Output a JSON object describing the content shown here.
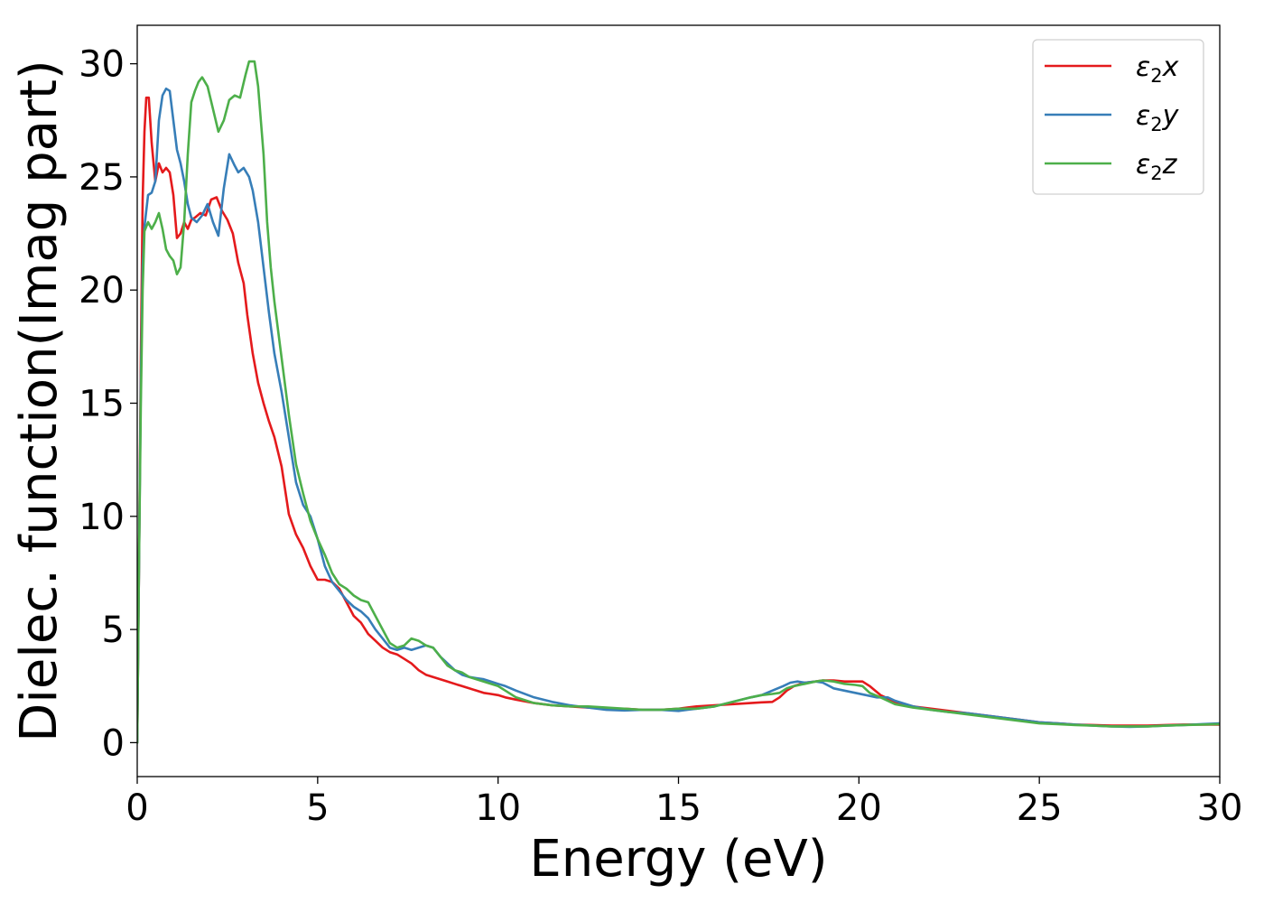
{
  "chart_data": {
    "type": "line",
    "xlabel": "Energy (eV)",
    "ylabel": "Dielec. function(Imag part)",
    "xlim": [
      0,
      30
    ],
    "ylim": [
      -1.5,
      31.7
    ],
    "xticks": [
      0,
      5,
      10,
      15,
      20,
      25,
      30
    ],
    "yticks": [
      0,
      5,
      10,
      15,
      20,
      25,
      30
    ],
    "grid": false,
    "legend_position": "top-right",
    "series": [
      {
        "name": "ε₂x",
        "legend_main": "ε",
        "legend_sub": "2",
        "legend_var": "x",
        "color": "#e41a1c",
        "x": [
          0,
          0.05,
          0.1,
          0.15,
          0.2,
          0.25,
          0.32,
          0.4,
          0.5,
          0.6,
          0.7,
          0.8,
          0.9,
          1.0,
          1.1,
          1.2,
          1.3,
          1.4,
          1.5,
          1.6,
          1.75,
          1.9,
          2.05,
          2.2,
          2.35,
          2.5,
          2.65,
          2.8,
          2.95,
          3.05,
          3.2,
          3.35,
          3.5,
          3.65,
          3.8,
          4.0,
          4.2,
          4.4,
          4.6,
          4.8,
          5.0,
          5.2,
          5.4,
          5.6,
          5.8,
          6.0,
          6.2,
          6.4,
          6.6,
          6.8,
          7.0,
          7.2,
          7.4,
          7.6,
          7.8,
          8.0,
          8.2,
          8.4,
          8.6,
          8.8,
          9.0,
          9.2,
          9.4,
          9.6,
          9.8,
          10.0,
          10.2,
          10.5,
          11.0,
          11.5,
          12.0,
          12.5,
          13.0,
          13.5,
          14.0,
          14.5,
          15.0,
          15.5,
          16.0,
          16.5,
          17.0,
          17.3,
          17.6,
          17.8,
          18.0,
          18.2,
          18.5,
          18.8,
          19.0,
          19.3,
          19.6,
          19.9,
          20.1,
          20.3,
          20.6,
          21.0,
          21.5,
          22.0,
          22.5,
          23.0,
          23.5,
          24.0,
          24.5,
          25.0,
          25.5,
          26.0,
          26.5,
          27.0,
          27.5,
          28.0,
          28.5,
          29.0,
          29.5,
          30.0
        ],
        "y": [
          0,
          8,
          17,
          24,
          27,
          28.5,
          28.5,
          26.5,
          24.8,
          25.6,
          25.2,
          25.4,
          25.2,
          24.2,
          22.3,
          22.5,
          23.0,
          22.7,
          23.1,
          23.2,
          23.4,
          23.3,
          24.0,
          24.1,
          23.5,
          23.1,
          22.5,
          21.2,
          20.3,
          18.9,
          17.2,
          15.9,
          15.0,
          14.2,
          13.5,
          12.2,
          10.1,
          9.2,
          8.6,
          7.8,
          7.2,
          7.2,
          7.1,
          6.8,
          6.2,
          5.6,
          5.3,
          4.8,
          4.5,
          4.2,
          4.0,
          3.9,
          3.7,
          3.5,
          3.2,
          3.0,
          2.9,
          2.8,
          2.7,
          2.6,
          2.5,
          2.4,
          2.3,
          2.2,
          2.15,
          2.1,
          2.0,
          1.9,
          1.75,
          1.65,
          1.6,
          1.55,
          1.5,
          1.5,
          1.45,
          1.45,
          1.5,
          1.6,
          1.65,
          1.7,
          1.75,
          1.78,
          1.8,
          2.0,
          2.3,
          2.5,
          2.65,
          2.7,
          2.75,
          2.75,
          2.7,
          2.7,
          2.7,
          2.5,
          2.1,
          1.8,
          1.6,
          1.5,
          1.4,
          1.3,
          1.2,
          1.1,
          1.0,
          0.9,
          0.85,
          0.8,
          0.78,
          0.75,
          0.75,
          0.75,
          0.78,
          0.8,
          0.8,
          0.8
        ]
      },
      {
        "name": "ε₂y",
        "legend_main": "ε",
        "legend_sub": "2",
        "legend_var": "y",
        "color": "#377eb8",
        "x": [
          0,
          0.05,
          0.1,
          0.15,
          0.2,
          0.3,
          0.4,
          0.5,
          0.6,
          0.7,
          0.8,
          0.9,
          1.0,
          1.1,
          1.2,
          1.3,
          1.4,
          1.5,
          1.65,
          1.8,
          1.95,
          2.1,
          2.25,
          2.4,
          2.55,
          2.7,
          2.8,
          2.95,
          3.1,
          3.2,
          3.35,
          3.5,
          3.65,
          3.8,
          4.0,
          4.2,
          4.4,
          4.6,
          4.8,
          5.0,
          5.2,
          5.4,
          5.6,
          5.8,
          6.0,
          6.2,
          6.4,
          6.6,
          6.8,
          7.0,
          7.2,
          7.4,
          7.6,
          7.8,
          8.0,
          8.2,
          8.4,
          8.6,
          8.8,
          9.0,
          9.2,
          9.4,
          9.6,
          9.8,
          10.0,
          10.2,
          10.5,
          11.0,
          11.5,
          12.0,
          12.5,
          13.0,
          13.5,
          14.0,
          14.5,
          15.0,
          15.5,
          16.0,
          16.5,
          17.0,
          17.3,
          17.6,
          17.9,
          18.1,
          18.3,
          18.5,
          18.8,
          19.0,
          19.3,
          19.6,
          19.9,
          20.2,
          20.5,
          20.8,
          21.0,
          21.5,
          22.0,
          22.5,
          23.0,
          23.5,
          24.0,
          24.5,
          25.0,
          25.5,
          26.0,
          26.5,
          27.0,
          27.5,
          28.0,
          28.5,
          29.0,
          29.5,
          30.0
        ],
        "y": [
          0,
          8,
          16,
          21,
          22.8,
          24.2,
          24.3,
          24.8,
          27.5,
          28.6,
          28.9,
          28.8,
          27.5,
          26.2,
          25.6,
          24.8,
          23.8,
          23.2,
          23.0,
          23.3,
          23.8,
          23.0,
          22.4,
          24.5,
          26.0,
          25.5,
          25.2,
          25.4,
          25.0,
          24.4,
          23.0,
          21.0,
          19.0,
          17.2,
          15.5,
          13.5,
          11.5,
          10.5,
          10.0,
          9.0,
          7.8,
          7.1,
          6.7,
          6.3,
          6.0,
          5.8,
          5.5,
          5.0,
          4.6,
          4.2,
          4.1,
          4.2,
          4.1,
          4.2,
          4.3,
          4.2,
          3.8,
          3.5,
          3.2,
          3.0,
          2.9,
          2.85,
          2.8,
          2.7,
          2.6,
          2.5,
          2.3,
          2.0,
          1.8,
          1.65,
          1.55,
          1.45,
          1.42,
          1.45,
          1.45,
          1.4,
          1.5,
          1.6,
          1.8,
          2.0,
          2.1,
          2.3,
          2.5,
          2.65,
          2.7,
          2.65,
          2.7,
          2.65,
          2.4,
          2.3,
          2.2,
          2.1,
          2.0,
          2.0,
          1.85,
          1.6,
          1.45,
          1.35,
          1.3,
          1.2,
          1.1,
          1.0,
          0.9,
          0.85,
          0.8,
          0.75,
          0.72,
          0.7,
          0.72,
          0.75,
          0.78,
          0.82,
          0.85
        ]
      },
      {
        "name": "ε₂z",
        "legend_main": "ε",
        "legend_sub": "2",
        "legend_var": "z",
        "color": "#4daf4a",
        "x": [
          0,
          0.05,
          0.1,
          0.15,
          0.2,
          0.3,
          0.4,
          0.5,
          0.6,
          0.7,
          0.8,
          0.9,
          1.0,
          1.1,
          1.2,
          1.3,
          1.4,
          1.5,
          1.6,
          1.7,
          1.8,
          1.95,
          2.1,
          2.25,
          2.4,
          2.55,
          2.7,
          2.85,
          3.0,
          3.1,
          3.25,
          3.35,
          3.5,
          3.6,
          3.7,
          3.8,
          4.0,
          4.2,
          4.4,
          4.6,
          4.8,
          5.0,
          5.2,
          5.4,
          5.6,
          5.8,
          6.0,
          6.2,
          6.4,
          6.6,
          6.8,
          7.0,
          7.2,
          7.4,
          7.6,
          7.8,
          8.0,
          8.2,
          8.4,
          8.6,
          8.8,
          9.0,
          9.2,
          9.4,
          9.6,
          9.8,
          10.0,
          10.2,
          10.5,
          11.0,
          11.5,
          12.0,
          12.5,
          13.0,
          13.5,
          14.0,
          14.5,
          15.0,
          15.5,
          16.0,
          16.5,
          17.0,
          17.3,
          17.6,
          17.8,
          18.0,
          18.2,
          18.5,
          18.8,
          19.0,
          19.3,
          19.6,
          19.9,
          20.1,
          20.3,
          20.6,
          21.0,
          21.5,
          22.0,
          22.5,
          23.0,
          23.5,
          24.0,
          24.5,
          25.0,
          25.5,
          26.0,
          26.5,
          27.0,
          27.5,
          28.0,
          28.5,
          29.0,
          29.5,
          30.0
        ],
        "y": [
          0,
          8,
          15,
          20,
          22.6,
          23.0,
          22.7,
          23.0,
          23.4,
          22.7,
          21.8,
          21.5,
          21.3,
          20.7,
          21.0,
          23.0,
          26.0,
          28.3,
          28.8,
          29.2,
          29.4,
          29.0,
          28.0,
          27.0,
          27.5,
          28.4,
          28.6,
          28.5,
          29.5,
          30.1,
          30.1,
          29.0,
          26.0,
          23.0,
          21.0,
          19.5,
          17.0,
          14.5,
          12.3,
          11.0,
          9.8,
          9.0,
          8.3,
          7.5,
          7.0,
          6.8,
          6.5,
          6.3,
          6.2,
          5.6,
          5.0,
          4.4,
          4.2,
          4.3,
          4.6,
          4.5,
          4.3,
          4.2,
          3.8,
          3.4,
          3.2,
          3.1,
          2.9,
          2.8,
          2.7,
          2.6,
          2.5,
          2.3,
          2.0,
          1.75,
          1.65,
          1.6,
          1.6,
          1.55,
          1.5,
          1.45,
          1.45,
          1.5,
          1.5,
          1.6,
          1.8,
          2.0,
          2.1,
          2.15,
          2.2,
          2.4,
          2.5,
          2.6,
          2.7,
          2.75,
          2.7,
          2.6,
          2.55,
          2.5,
          2.2,
          2.0,
          1.7,
          1.55,
          1.45,
          1.35,
          1.25,
          1.15,
          1.05,
          0.95,
          0.85,
          0.82,
          0.78,
          0.75,
          0.72,
          0.72,
          0.72,
          0.75,
          0.78,
          0.8,
          0.82
        ]
      }
    ]
  }
}
